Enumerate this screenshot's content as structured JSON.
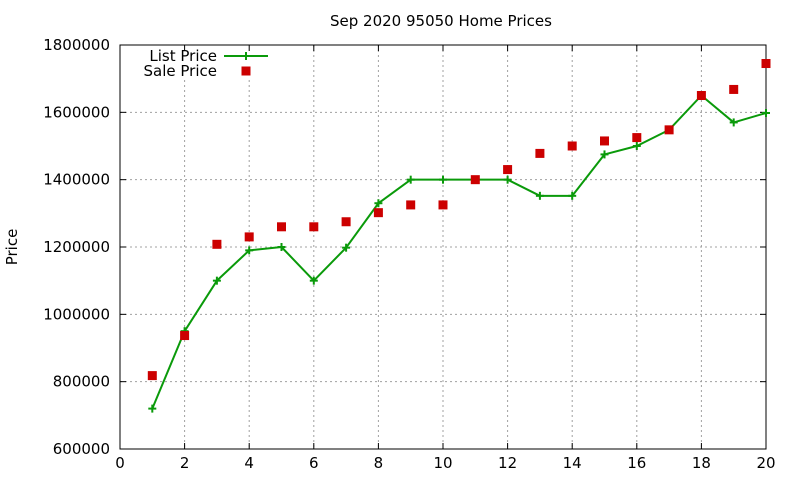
{
  "chart_data": {
    "type": "line",
    "title": "Sep 2020 95050 Home Prices",
    "xlabel": "",
    "ylabel": "Price",
    "xlim": [
      0,
      20
    ],
    "ylim": [
      600000,
      1800000
    ],
    "xticks": [
      0,
      2,
      4,
      6,
      8,
      10,
      12,
      14,
      16,
      18,
      20
    ],
    "yticks": [
      600000,
      800000,
      1000000,
      1200000,
      1400000,
      1600000,
      1800000
    ],
    "grid": true,
    "legend_position": "top-left",
    "series": [
      {
        "name": "List Price",
        "style": "line-with-plus-markers",
        "color": "#0a9a0a",
        "x": [
          1,
          2,
          3,
          4,
          5,
          6,
          7,
          8,
          9,
          10,
          11,
          12,
          13,
          14,
          15,
          16,
          17,
          18,
          19,
          20
        ],
        "y": [
          720000,
          950000,
          1100000,
          1190000,
          1200000,
          1100000,
          1198000,
          1330000,
          1400000,
          1400000,
          1400000,
          1400000,
          1352000,
          1352000,
          1475000,
          1500000,
          1548000,
          1650000,
          1570000,
          1598000
        ]
      },
      {
        "name": "Sale Price",
        "style": "square-markers",
        "color": "#cc0000",
        "x": [
          1,
          2,
          3,
          4,
          5,
          6,
          7,
          8,
          9,
          10,
          11,
          12,
          13,
          14,
          15,
          16,
          17,
          18,
          19,
          20
        ],
        "y": [
          818000,
          937000,
          1208000,
          1230000,
          1260000,
          1260000,
          1275000,
          1302000,
          1325000,
          1325000,
          1400000,
          1430000,
          1478000,
          1500000,
          1515000,
          1525000,
          1548000,
          1650000,
          1668000,
          1745000
        ]
      }
    ]
  }
}
